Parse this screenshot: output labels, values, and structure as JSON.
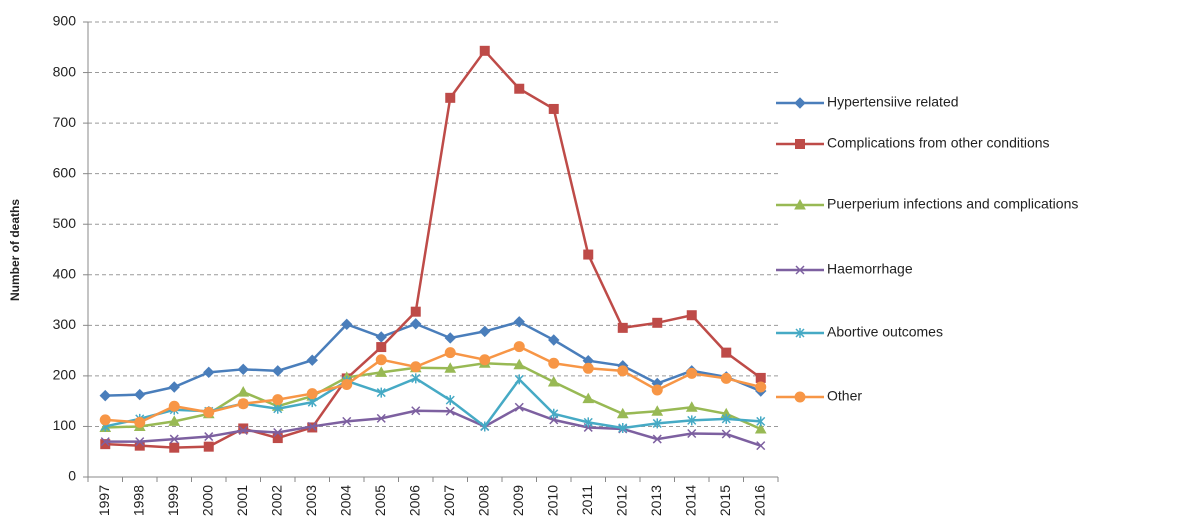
{
  "chart_data": {
    "type": "line",
    "y_label": "Number of deaths",
    "categories": [
      "1997",
      "1998",
      "1999",
      "2000",
      "2001",
      "2002",
      "2003",
      "2004",
      "2005",
      "2006",
      "2007",
      "2008",
      "2009",
      "2010",
      "2011",
      "2012",
      "2013",
      "2014",
      "2015",
      "2016"
    ],
    "series": [
      {
        "name": "Hypertensiive related",
        "color": "#4a7ebb",
        "marker": "diamond",
        "values": [
          161,
          163,
          178,
          207,
          213,
          210,
          231,
          302,
          277,
          303,
          275,
          288,
          307,
          271,
          230,
          220,
          185,
          210,
          198,
          170
        ]
      },
      {
        "name": "Complications from other conditions",
        "color": "#be4b48",
        "marker": "square",
        "values": [
          65,
          62,
          58,
          60,
          96,
          77,
          98,
          195,
          257,
          327,
          750,
          843,
          768,
          728,
          440,
          295,
          305,
          320,
          246,
          196
        ]
      },
      {
        "name": "Puerperium infections and complications",
        "color": "#98b954",
        "marker": "triangle",
        "values": [
          98,
          100,
          110,
          125,
          168,
          140,
          160,
          197,
          207,
          216,
          215,
          225,
          222,
          188,
          155,
          125,
          130,
          138,
          125,
          95
        ]
      },
      {
        "name": "Haemorrhage",
        "color": "#7d60a0",
        "marker": "x",
        "values": [
          70,
          70,
          75,
          80,
          92,
          88,
          100,
          110,
          116,
          131,
          130,
          100,
          138,
          113,
          98,
          95,
          75,
          86,
          85,
          62
        ]
      },
      {
        "name": "Abortive outcomes",
        "color": "#46aac5",
        "marker": "star",
        "values": [
          100,
          115,
          133,
          130,
          145,
          135,
          148,
          190,
          167,
          195,
          152,
          100,
          193,
          125,
          108,
          97,
          106,
          112,
          115,
          110
        ]
      },
      {
        "name": "Other",
        "color": "#f79646",
        "marker": "circle",
        "values": [
          113,
          108,
          140,
          128,
          145,
          153,
          165,
          183,
          232,
          218,
          246,
          232,
          258,
          225,
          215,
          210,
          172,
          205,
          195,
          178
        ]
      }
    ],
    "ylim": [
      0,
      900
    ],
    "yticks": [
      0,
      100,
      200,
      300,
      400,
      500,
      600,
      700,
      800,
      900
    ],
    "grid": true,
    "legend": "right"
  }
}
